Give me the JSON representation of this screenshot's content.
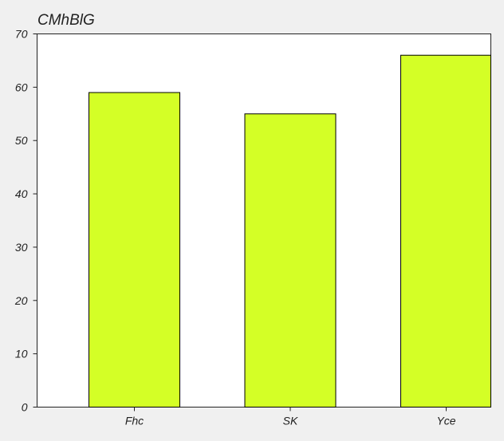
{
  "chart_data": {
    "type": "bar",
    "title": "CMhBlG",
    "xlabel": "",
    "ylabel": "",
    "categories": [
      "Fhc",
      "SK",
      "Yce"
    ],
    "values": [
      59,
      55,
      66
    ],
    "ylim": [
      0,
      70
    ],
    "yticks": [
      0,
      10,
      20,
      30,
      40,
      50,
      60,
      70
    ],
    "grid": false,
    "legend": "none",
    "bar_color": "#d4ff26",
    "bar_edge_color": "#000000",
    "plot_background": "#ffffff",
    "page_background": "#f0f0f0"
  }
}
